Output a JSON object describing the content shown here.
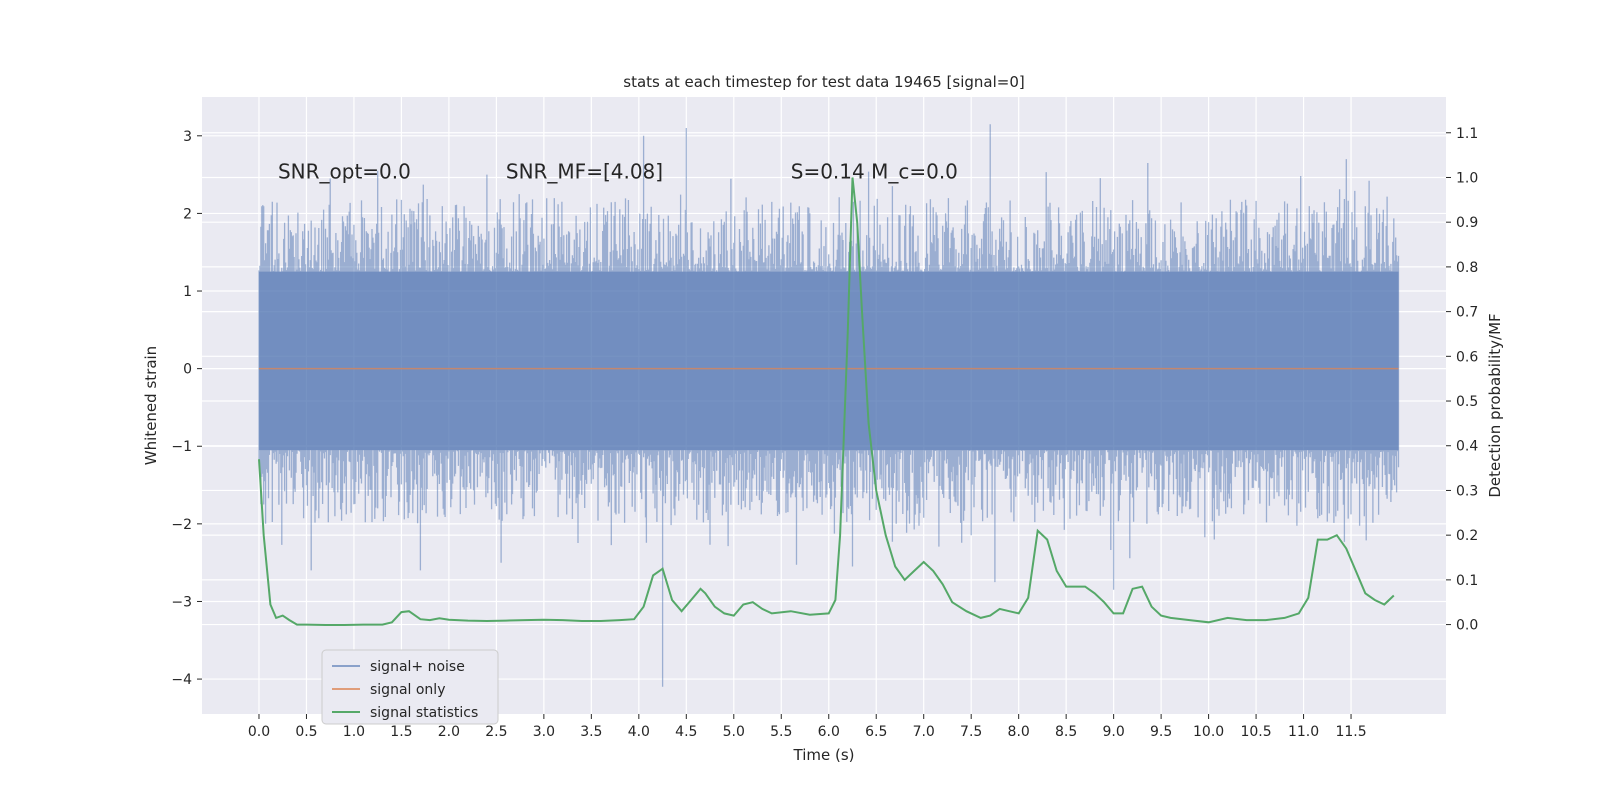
{
  "chart_data": {
    "type": "line",
    "title": "stats at each timestep for test data 19465 [signal=0]",
    "xlabel": "Time (s)",
    "ylabel": "Whitened strain",
    "y2label": "Detection probability/MF",
    "xlim": [
      -0.6,
      12.5
    ],
    "ylim": [
      -4.45,
      3.5
    ],
    "y2lim": [
      -0.2,
      1.18
    ],
    "xticks": [
      0.0,
      0.5,
      1.0,
      1.5,
      2.0,
      2.5,
      3.0,
      3.5,
      4.0,
      4.5,
      5.0,
      5.5,
      6.0,
      6.5,
      7.0,
      7.5,
      8.0,
      8.5,
      9.0,
      9.5,
      10.0,
      10.5,
      11.0,
      11.5
    ],
    "xtick_labels": [
      "0.0",
      "0.5",
      "1.0",
      "1.5",
      "2.0",
      "2.5",
      "3.0",
      "3.5",
      "4.0",
      "4.5",
      "5.0",
      "5.5",
      "6.0",
      "6.5",
      "7.0",
      "7.5",
      "8.0",
      "8.5",
      "9.0",
      "9.5",
      "10.0",
      "10.5",
      "11.0",
      "11.5"
    ],
    "yticks": [
      3,
      2,
      1,
      0,
      -1,
      -2,
      -3,
      -4
    ],
    "ytick_labels": [
      "3",
      "2",
      "1",
      "0",
      "−1",
      "−2",
      "−3",
      "−4"
    ],
    "y2ticks": [
      1.1,
      1.0,
      0.9,
      0.8,
      0.7,
      0.6,
      0.5,
      0.4,
      0.3,
      0.2,
      0.1,
      0.0
    ],
    "y2tick_labels": [
      "1.1",
      "1.0",
      "0.9",
      "0.8",
      "0.7",
      "0.6",
      "0.5",
      "0.4",
      "0.3",
      "0.2",
      "0.1",
      "0.0"
    ],
    "grid": true,
    "legend_position": "lower-left",
    "annotations": [
      {
        "text": "SNR_opt=0.0",
        "x": 0.2,
        "y": 2.45
      },
      {
        "text": "SNR_MF=[4.08]",
        "x": 2.6,
        "y": 2.45
      },
      {
        "text": "S=0.14  M_c=0.0",
        "x": 5.6,
        "y": 2.45
      }
    ],
    "series": [
      {
        "name": "signal+ noise",
        "color": "#4c72b0",
        "axis": "left",
        "kind": "noise band",
        "x_range": [
          0.0,
          12.0
        ],
        "typical_range": [
          -1.55,
          1.8
        ],
        "peaks": [
          [
            0.75,
            2.45
          ],
          [
            2.4,
            2.5
          ],
          [
            4.05,
            3.0
          ],
          [
            4.5,
            3.1
          ],
          [
            7.7,
            3.15
          ],
          [
            11.45,
            2.7
          ],
          [
            0.55,
            -2.6
          ],
          [
            1.7,
            -2.6
          ],
          [
            4.25,
            -4.1
          ],
          [
            7.75,
            -2.75
          ],
          [
            9.0,
            -2.85
          ],
          [
            6.25,
            -2.55
          ],
          [
            2.55,
            -2.5
          ]
        ]
      },
      {
        "name": "signal only",
        "color": "#dd8452",
        "axis": "left",
        "x": [
          0.0,
          12.0
        ],
        "y": [
          0.0,
          0.0
        ]
      },
      {
        "name": "signal statistics",
        "color": "#55a868",
        "axis": "right",
        "x": [
          0.0,
          0.05,
          0.12,
          0.18,
          0.25,
          0.32,
          0.4,
          0.5,
          0.7,
          0.9,
          1.1,
          1.3,
          1.4,
          1.5,
          1.58,
          1.7,
          1.8,
          1.9,
          2.0,
          2.2,
          2.4,
          2.6,
          2.8,
          3.0,
          3.2,
          3.4,
          3.6,
          3.8,
          3.95,
          4.05,
          4.15,
          4.25,
          4.35,
          4.45,
          4.55,
          4.65,
          4.7,
          4.8,
          4.9,
          5.0,
          5.1,
          5.2,
          5.3,
          5.4,
          5.6,
          5.8,
          6.0,
          6.07,
          6.12,
          6.2,
          6.25,
          6.3,
          6.35,
          6.42,
          6.5,
          6.6,
          6.7,
          6.8,
          6.9,
          7.0,
          7.1,
          7.2,
          7.3,
          7.45,
          7.6,
          7.7,
          7.8,
          7.9,
          8.0,
          8.1,
          8.2,
          8.3,
          8.4,
          8.5,
          8.6,
          8.7,
          8.8,
          8.9,
          9.0,
          9.1,
          9.2,
          9.3,
          9.4,
          9.5,
          9.6,
          9.8,
          10.0,
          10.2,
          10.4,
          10.6,
          10.8,
          10.95,
          11.05,
          11.15,
          11.25,
          11.35,
          11.45,
          11.55,
          11.65,
          11.75,
          11.85,
          11.95
        ],
        "y": [
          0.37,
          0.2,
          0.045,
          0.015,
          0.02,
          0.01,
          0.0,
          0.0,
          -0.001,
          -0.001,
          0.0,
          0.0,
          0.005,
          0.028,
          0.03,
          0.012,
          0.01,
          0.014,
          0.011,
          0.009,
          0.008,
          0.009,
          0.01,
          0.011,
          0.01,
          0.008,
          0.008,
          0.01,
          0.012,
          0.04,
          0.11,
          0.125,
          0.055,
          0.03,
          0.055,
          0.08,
          0.07,
          0.04,
          0.025,
          0.02,
          0.045,
          0.05,
          0.035,
          0.025,
          0.03,
          0.022,
          0.025,
          0.055,
          0.2,
          0.65,
          1.0,
          0.9,
          0.7,
          0.45,
          0.3,
          0.2,
          0.13,
          0.1,
          0.12,
          0.14,
          0.12,
          0.09,
          0.05,
          0.03,
          0.015,
          0.02,
          0.035,
          0.03,
          0.025,
          0.06,
          0.21,
          0.19,
          0.12,
          0.085,
          0.085,
          0.085,
          0.07,
          0.05,
          0.025,
          0.025,
          0.08,
          0.085,
          0.04,
          0.02,
          0.015,
          0.01,
          0.005,
          0.015,
          0.01,
          0.01,
          0.015,
          0.025,
          0.06,
          0.19,
          0.19,
          0.2,
          0.17,
          0.12,
          0.07,
          0.055,
          0.045,
          0.065
        ]
      }
    ]
  }
}
